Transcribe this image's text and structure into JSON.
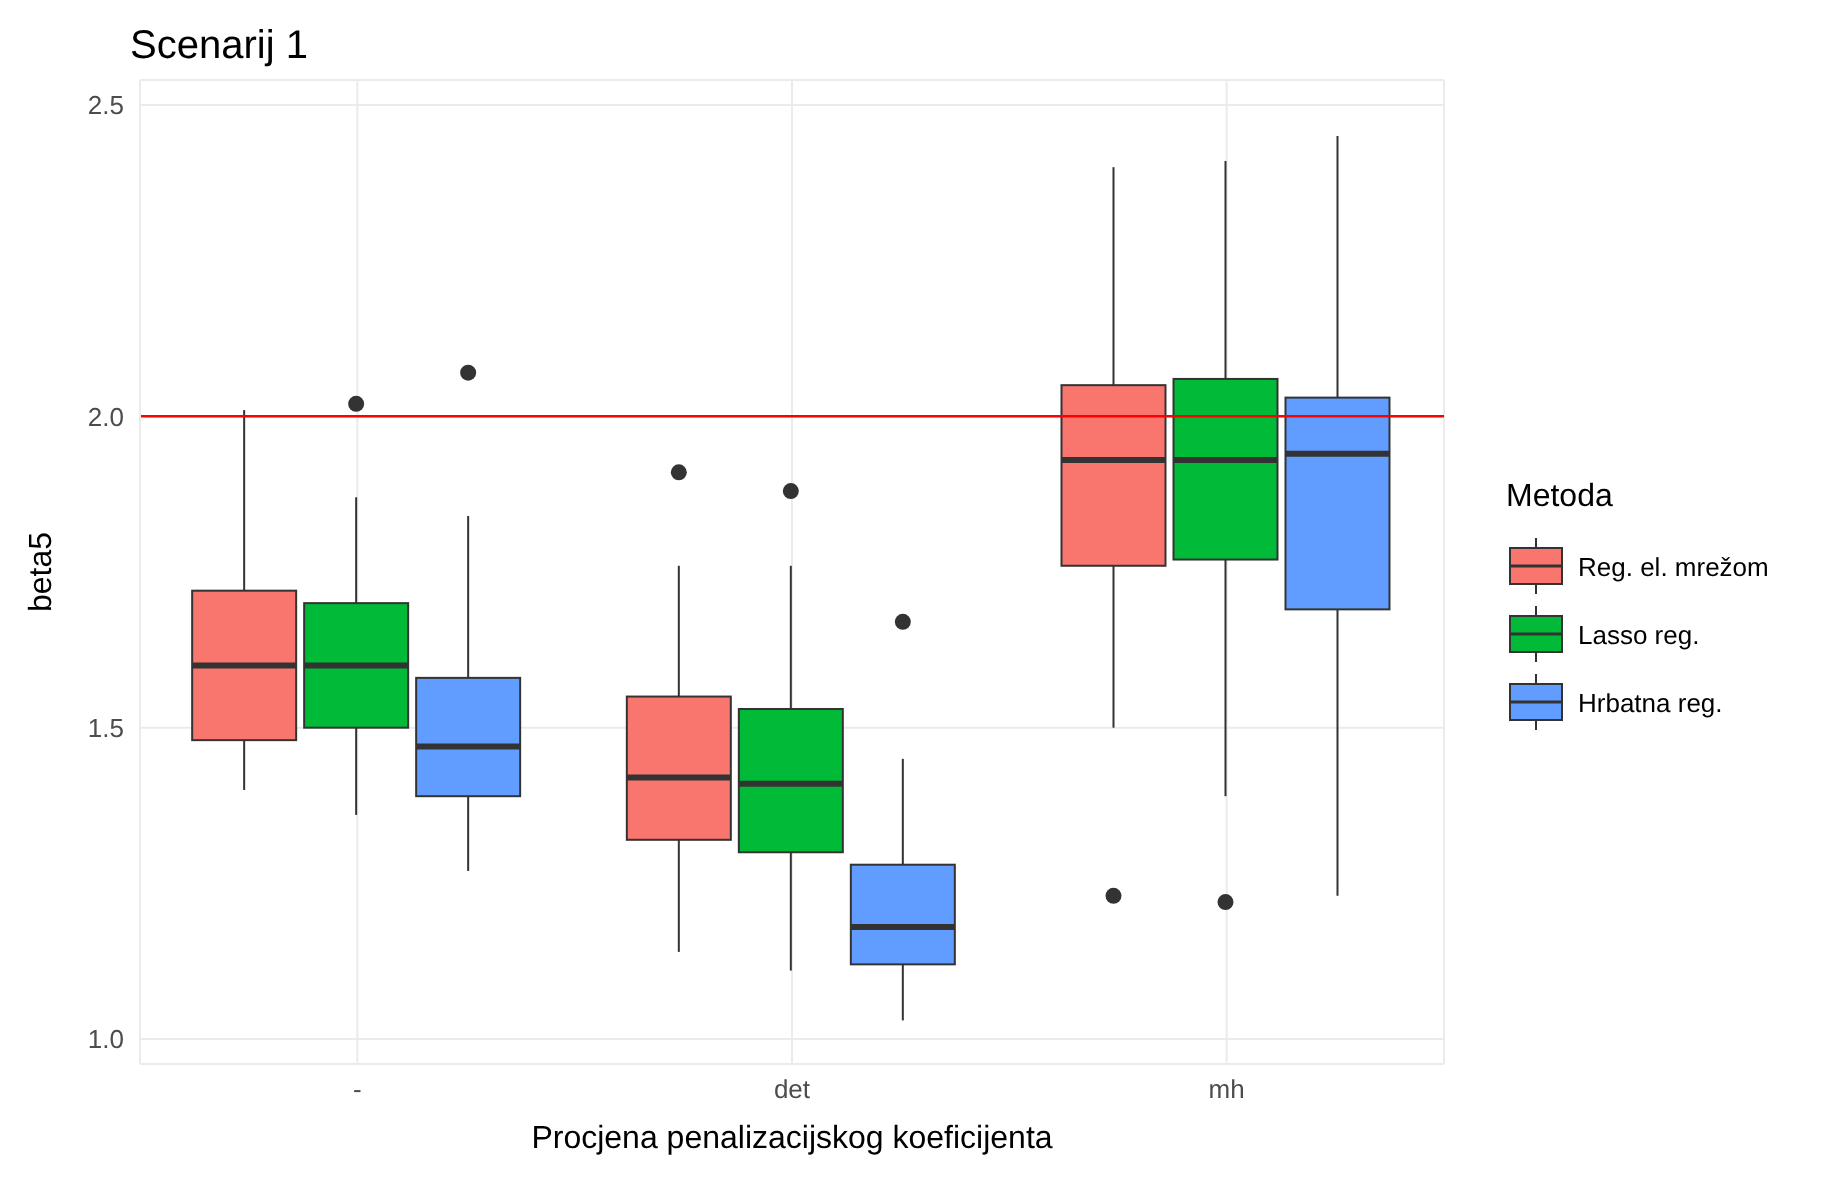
{
  "chart_data": {
    "type": "box",
    "title": "Scenarij 1",
    "xlabel": "Procjena penalizacijskog koeficijenta",
    "ylabel": "beta5",
    "legend_title": "Metoda",
    "categories": [
      "-",
      "det",
      "mh"
    ],
    "series": [
      {
        "name": "Reg. el. mrežom",
        "color": "#f8766d",
        "boxes": [
          {
            "low": 1.4,
            "q1": 1.48,
            "median": 1.6,
            "q3": 1.72,
            "high": 2.01
          },
          {
            "low": 1.14,
            "q1": 1.32,
            "median": 1.42,
            "q3": 1.55,
            "high": 1.76,
            "outliers": [
              1.91
            ]
          },
          {
            "low": 1.5,
            "q1": 1.76,
            "median": 1.93,
            "q3": 2.05,
            "high": 2.4,
            "outliers": [
              1.23
            ]
          }
        ]
      },
      {
        "name": "Lasso reg.",
        "color": "#00ba38",
        "boxes": [
          {
            "low": 1.36,
            "q1": 1.5,
            "median": 1.6,
            "q3": 1.7,
            "high": 1.87,
            "outliers": [
              2.02
            ]
          },
          {
            "low": 1.11,
            "q1": 1.3,
            "median": 1.41,
            "q3": 1.53,
            "high": 1.76,
            "outliers": [
              1.88
            ]
          },
          {
            "low": 1.39,
            "q1": 1.77,
            "median": 1.93,
            "q3": 2.06,
            "high": 2.41,
            "outliers": [
              1.22
            ]
          }
        ]
      },
      {
        "name": "Hrbatna reg.",
        "color": "#619cff",
        "boxes": [
          {
            "low": 1.27,
            "q1": 1.39,
            "median": 1.47,
            "q3": 1.58,
            "high": 1.84,
            "outliers": [
              2.07
            ]
          },
          {
            "low": 1.03,
            "q1": 1.12,
            "median": 1.18,
            "q3": 1.28,
            "high": 1.45,
            "outliers": [
              1.67
            ]
          },
          {
            "low": 1.23,
            "q1": 1.69,
            "median": 1.94,
            "q3": 2.03,
            "high": 2.45
          }
        ]
      }
    ],
    "ylim": [
      0.96,
      2.54
    ],
    "yticks": [
      {
        "value": 1,
        "label": "1.0"
      },
      1.5,
      {
        "value": 2,
        "label": "2.0"
      },
      2.5
    ],
    "ref_lines": [
      {
        "axis": "y",
        "value": 2,
        "color": "#ff0000"
      }
    ],
    "grid": true,
    "legend": "right"
  }
}
